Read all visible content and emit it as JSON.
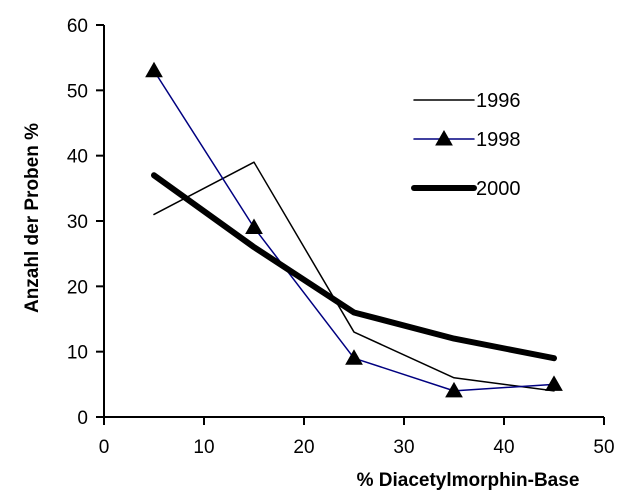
{
  "chart_data": {
    "type": "line",
    "xlabel": "% Diacetylmorphin-Base",
    "ylabel": "Anzahl der Proben %",
    "xlim": [
      0,
      50
    ],
    "ylim": [
      0,
      60
    ],
    "xticks": [
      0,
      10,
      20,
      30,
      40,
      50
    ],
    "yticks": [
      0,
      10,
      20,
      30,
      40,
      50,
      60
    ],
    "grid": false,
    "legend_position": "right",
    "series": [
      {
        "name": "1996",
        "x": [
          5,
          15,
          25,
          35,
          45
        ],
        "y": [
          31,
          39,
          13,
          6,
          4
        ],
        "color": "#000000",
        "line_width": "thin",
        "marker": "none"
      },
      {
        "name": "1998",
        "x": [
          5,
          15,
          25,
          35,
          45
        ],
        "y": [
          53,
          29,
          9,
          4,
          5
        ],
        "color": "#000080",
        "line_width": "thin",
        "marker": "triangle"
      },
      {
        "name": "2000",
        "x": [
          5,
          15,
          25,
          35,
          45
        ],
        "y": [
          37,
          26,
          16,
          12,
          9
        ],
        "color": "#000000",
        "line_width": "thick",
        "marker": "none"
      }
    ]
  }
}
